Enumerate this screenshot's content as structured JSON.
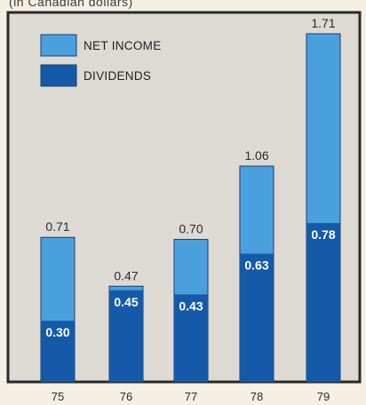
{
  "header": {
    "note": "(in Canadian dollars)"
  },
  "chart_data": {
    "type": "bar",
    "stacked": "overlay",
    "categories": [
      "75",
      "76",
      "77",
      "78",
      "79"
    ],
    "series": [
      {
        "name": "NET INCOME",
        "values": [
          0.71,
          0.47,
          0.7,
          1.06,
          1.71
        ],
        "color": "#4aa0dc"
      },
      {
        "name": "DIVIDENDS",
        "values": [
          0.3,
          0.45,
          0.43,
          0.63,
          0.78
        ],
        "color": "#145aa8"
      }
    ],
    "net_income_labels": [
      "0.71",
      "0.47",
      "0.70",
      "1.06",
      "1.71"
    ],
    "dividend_labels": [
      "0.30",
      "0.45",
      "0.43",
      "0.63",
      "0.78"
    ],
    "legend_position": "top-left",
    "ylim": [
      0,
      1.71
    ],
    "grid": false
  },
  "colors": {
    "panel": "#dcdad2",
    "frame": "#2a2a2a",
    "bar_edge": "#1a3f6e"
  }
}
